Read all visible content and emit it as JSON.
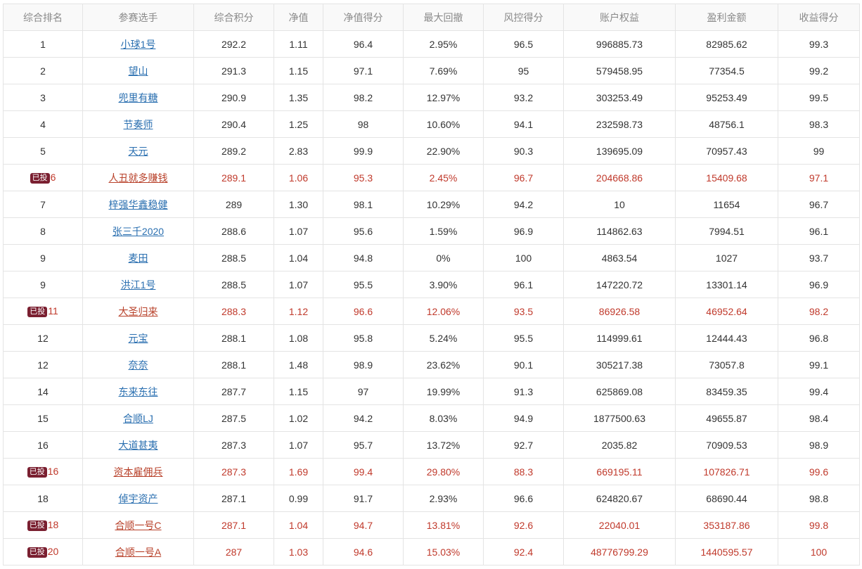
{
  "table": {
    "headers": [
      "综合排名",
      "参赛选手",
      "综合积分",
      "净值",
      "净值得分",
      "最大回撤",
      "风控得分",
      "账户权益",
      "盈利金额",
      "收益得分"
    ],
    "invested_badge": "已投",
    "colors": {
      "link": "#2a6fb0",
      "invested_text": "#c0392b",
      "badge_bg": "#7a1f30",
      "header_text": "#8a8a8a"
    },
    "rows": [
      {
        "rank": "1",
        "invested": false,
        "player": "小球1号",
        "score": "292.2",
        "nav": "1.11",
        "nav_score": "96.4",
        "max_drawdown": "2.95%",
        "risk_score": "96.5",
        "equity": "996885.73",
        "profit": "82985.62",
        "return_score": "99.3"
      },
      {
        "rank": "2",
        "invested": false,
        "player": "望山",
        "score": "291.3",
        "nav": "1.15",
        "nav_score": "97.1",
        "max_drawdown": "7.69%",
        "risk_score": "95",
        "equity": "579458.95",
        "profit": "77354.5",
        "return_score": "99.2"
      },
      {
        "rank": "3",
        "invested": false,
        "player": "兜里有糖",
        "score": "290.9",
        "nav": "1.35",
        "nav_score": "98.2",
        "max_drawdown": "12.97%",
        "risk_score": "93.2",
        "equity": "303253.49",
        "profit": "95253.49",
        "return_score": "99.5"
      },
      {
        "rank": "4",
        "invested": false,
        "player": "节奏师",
        "score": "290.4",
        "nav": "1.25",
        "nav_score": "98",
        "max_drawdown": "10.60%",
        "risk_score": "94.1",
        "equity": "232598.73",
        "profit": "48756.1",
        "return_score": "98.3"
      },
      {
        "rank": "5",
        "invested": false,
        "player": "天元",
        "score": "289.2",
        "nav": "2.83",
        "nav_score": "99.9",
        "max_drawdown": "22.90%",
        "risk_score": "90.3",
        "equity": "139695.09",
        "profit": "70957.43",
        "return_score": "99"
      },
      {
        "rank": "6",
        "invested": true,
        "player": "人丑就多赚钱",
        "score": "289.1",
        "nav": "1.06",
        "nav_score": "95.3",
        "max_drawdown": "2.45%",
        "risk_score": "96.7",
        "equity": "204668.86",
        "profit": "15409.68",
        "return_score": "97.1"
      },
      {
        "rank": "7",
        "invested": false,
        "player": "梓强华鑫稳健",
        "score": "289",
        "nav": "1.30",
        "nav_score": "98.1",
        "max_drawdown": "10.29%",
        "risk_score": "94.2",
        "equity": "10",
        "profit": "11654",
        "return_score": "96.7"
      },
      {
        "rank": "8",
        "invested": false,
        "player": "张三千2020",
        "score": "288.6",
        "nav": "1.07",
        "nav_score": "95.6",
        "max_drawdown": "1.59%",
        "risk_score": "96.9",
        "equity": "114862.63",
        "profit": "7994.51",
        "return_score": "96.1"
      },
      {
        "rank": "9",
        "invested": false,
        "player": "麦田",
        "score": "288.5",
        "nav": "1.04",
        "nav_score": "94.8",
        "max_drawdown": "0%",
        "risk_score": "100",
        "equity": "4863.54",
        "profit": "1027",
        "return_score": "93.7"
      },
      {
        "rank": "9",
        "invested": false,
        "player": "洪江1号",
        "score": "288.5",
        "nav": "1.07",
        "nav_score": "95.5",
        "max_drawdown": "3.90%",
        "risk_score": "96.1",
        "equity": "147220.72",
        "profit": "13301.14",
        "return_score": "96.9"
      },
      {
        "rank": "11",
        "invested": true,
        "player": "大圣归来",
        "score": "288.3",
        "nav": "1.12",
        "nav_score": "96.6",
        "max_drawdown": "12.06%",
        "risk_score": "93.5",
        "equity": "86926.58",
        "profit": "46952.64",
        "return_score": "98.2"
      },
      {
        "rank": "12",
        "invested": false,
        "player": "元宝",
        "score": "288.1",
        "nav": "1.08",
        "nav_score": "95.8",
        "max_drawdown": "5.24%",
        "risk_score": "95.5",
        "equity": "114999.61",
        "profit": "12444.43",
        "return_score": "96.8"
      },
      {
        "rank": "12",
        "invested": false,
        "player": "奈奈",
        "score": "288.1",
        "nav": "1.48",
        "nav_score": "98.9",
        "max_drawdown": "23.62%",
        "risk_score": "90.1",
        "equity": "305217.38",
        "profit": "73057.8",
        "return_score": "99.1"
      },
      {
        "rank": "14",
        "invested": false,
        "player": "东来东往",
        "score": "287.7",
        "nav": "1.15",
        "nav_score": "97",
        "max_drawdown": "19.99%",
        "risk_score": "91.3",
        "equity": "625869.08",
        "profit": "83459.35",
        "return_score": "99.4"
      },
      {
        "rank": "15",
        "invested": false,
        "player": "合顺LJ",
        "score": "287.5",
        "nav": "1.02",
        "nav_score": "94.2",
        "max_drawdown": "8.03%",
        "risk_score": "94.9",
        "equity": "1877500.63",
        "profit": "49655.87",
        "return_score": "98.4"
      },
      {
        "rank": "16",
        "invested": false,
        "player": "大道甚夷",
        "score": "287.3",
        "nav": "1.07",
        "nav_score": "95.7",
        "max_drawdown": "13.72%",
        "risk_score": "92.7",
        "equity": "2035.82",
        "profit": "70909.53",
        "return_score": "98.9"
      },
      {
        "rank": "16",
        "invested": true,
        "player": "资本雇佣兵",
        "score": "287.3",
        "nav": "1.69",
        "nav_score": "99.4",
        "max_drawdown": "29.80%",
        "risk_score": "88.3",
        "equity": "669195.11",
        "profit": "107826.71",
        "return_score": "99.6"
      },
      {
        "rank": "18",
        "invested": false,
        "player": "倬宇资产",
        "score": "287.1",
        "nav": "0.99",
        "nav_score": "91.7",
        "max_drawdown": "2.93%",
        "risk_score": "96.6",
        "equity": "624820.67",
        "profit": "68690.44",
        "return_score": "98.8"
      },
      {
        "rank": "18",
        "invested": true,
        "player": "合顺一号C",
        "score": "287.1",
        "nav": "1.04",
        "nav_score": "94.7",
        "max_drawdown": "13.81%",
        "risk_score": "92.6",
        "equity": "22040.01",
        "profit": "353187.86",
        "return_score": "99.8"
      },
      {
        "rank": "20",
        "invested": true,
        "player": "合顺一号A",
        "score": "287",
        "nav": "1.03",
        "nav_score": "94.6",
        "max_drawdown": "15.03%",
        "risk_score": "92.4",
        "equity": "48776799.29",
        "profit": "1440595.57",
        "return_score": "100"
      }
    ]
  }
}
